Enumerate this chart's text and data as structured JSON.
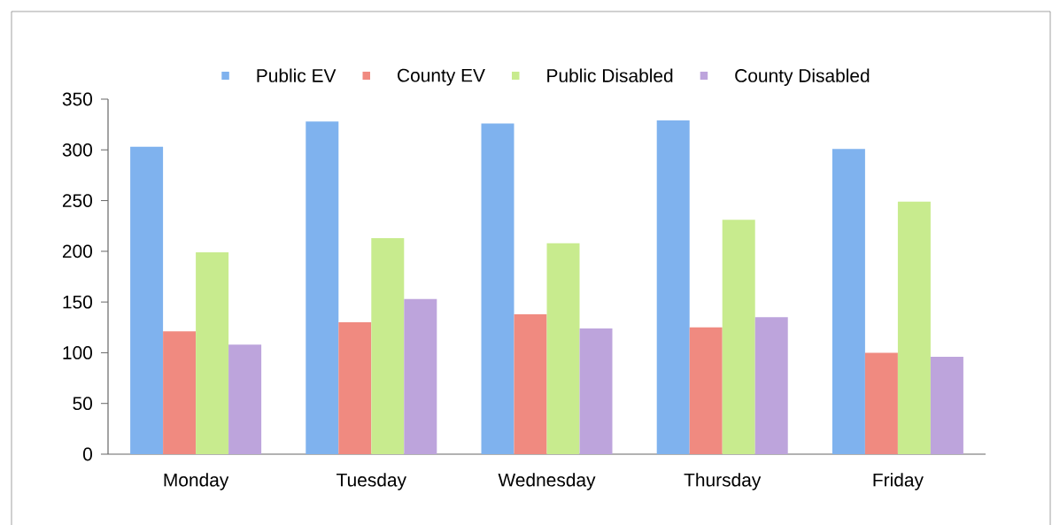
{
  "chart_data": {
    "type": "bar",
    "categories": [
      "Monday",
      "Tuesday",
      "Wednesday",
      "Thursday",
      "Friday"
    ],
    "series": [
      {
        "name": "Public EV",
        "color": "#7fb2ee",
        "values": [
          303,
          328,
          326,
          329,
          301
        ]
      },
      {
        "name": "County EV",
        "color": "#f08a80",
        "values": [
          121,
          130,
          138,
          125,
          100
        ]
      },
      {
        "name": "Public Disabled",
        "color": "#c8eb8e",
        "values": [
          199,
          213,
          208,
          231,
          249
        ]
      },
      {
        "name": "County Disabled",
        "color": "#bda4dc",
        "values": [
          108,
          153,
          124,
          135,
          96
        ]
      }
    ],
    "ylim": [
      0,
      350
    ],
    "yticks": [
      0,
      50,
      100,
      150,
      200,
      250,
      300,
      350
    ],
    "grid": false,
    "legend": "top"
  }
}
